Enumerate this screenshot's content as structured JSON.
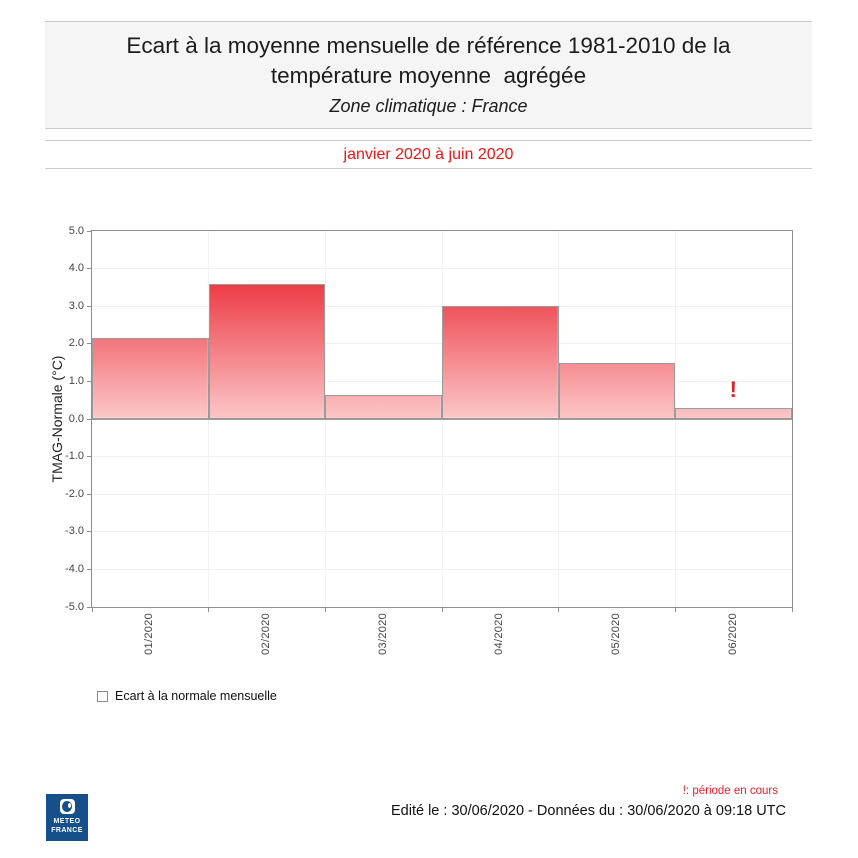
{
  "header": {
    "title": "Ecart à la moyenne mensuelle de référence 1981-2010 de la température moyenne  agrégée",
    "subtitle": "Zone climatique : France"
  },
  "period": {
    "label": "janvier 2020 à juin 2020"
  },
  "chart_data": {
    "type": "bar",
    "title": "Ecart à la moyenne mensuelle de référence 1981-2010 de la température moyenne agrégée",
    "subtitle": "Zone climatique : France",
    "categories": [
      "01/2020",
      "02/2020",
      "03/2020",
      "04/2020",
      "05/2020",
      "06/2020"
    ],
    "values": [
      2.15,
      3.6,
      0.65,
      3.0,
      1.5,
      0.3
    ],
    "xlabel": "",
    "ylabel": "TMAG-Normale (°C)",
    "ylim": [
      -5.0,
      5.0
    ],
    "ytick_step": 1.0,
    "ytick_format_decimals": 1,
    "grid": true,
    "legend_position": "bottom-left",
    "series_name": "Ecart à la normale mensuelle",
    "bar_gradient_top_color": "#e60511",
    "bar_gradient_bottom_color": "#fcc6c8",
    "bar_border_color": "#9b9b9b",
    "annotations": [
      {
        "text": "!",
        "category": "06/2020",
        "y": 0.75,
        "color": "#d8232a",
        "meaning": "période en cours"
      }
    ]
  },
  "legend": {
    "label": "Ecart à la normale mensuelle"
  },
  "footer": {
    "note": "!: période en cours",
    "edited": "Edité le : 30/06/2020 - Données du : 30/06/2020 à 09:18 UTC",
    "logo_line1": "METEO",
    "logo_line2": "FRANCE"
  }
}
